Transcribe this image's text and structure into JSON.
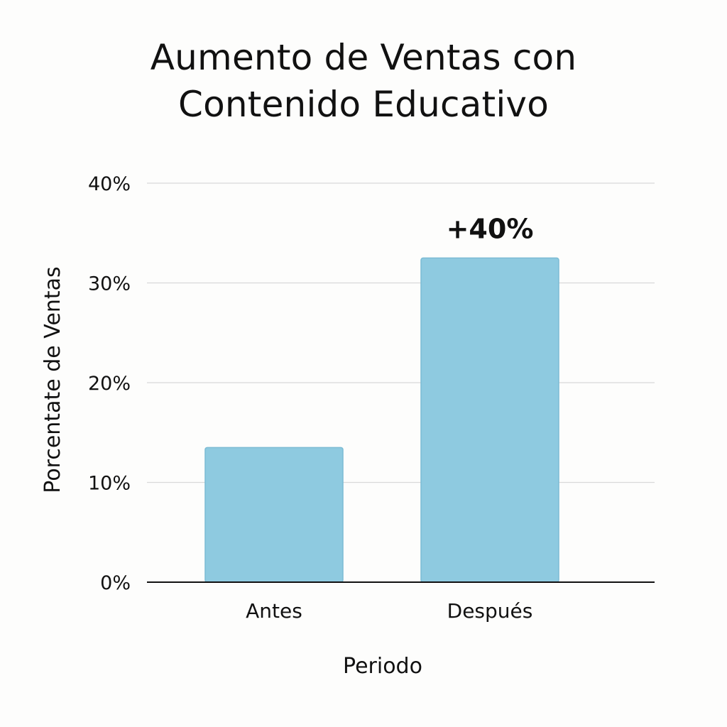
{
  "chart_data": {
    "type": "bar",
    "title_lines": [
      "Aumento de Ventas con",
      "Contenido Educativo"
    ],
    "categories": [
      "Antes",
      "Después"
    ],
    "values": [
      13.5,
      32.5
    ],
    "xlabel": "Periodo",
    "ylabel": "Porcentate de Ventas",
    "ylim": [
      0,
      40
    ],
    "yticks": [
      0,
      10,
      20,
      30,
      40
    ],
    "ytick_labels": [
      "0%",
      "10%",
      "20%",
      "30%",
      "40%"
    ],
    "annotations": [
      {
        "category": "Después",
        "text": "+40%"
      }
    ],
    "grid": true,
    "legend": "none",
    "colors": {
      "bar_fill": "#8ecae0",
      "bar_stroke": "#7bbbd4",
      "grid": "#d9d9d9",
      "axis": "#111111"
    }
  }
}
